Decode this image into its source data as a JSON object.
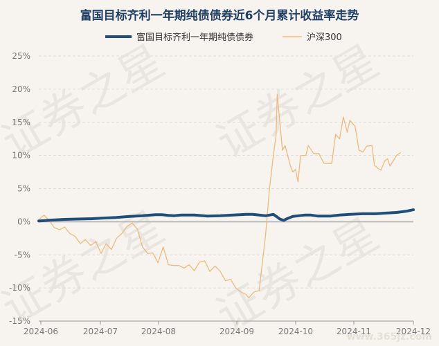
{
  "chart_data": {
    "type": "line",
    "title": "富国目标齐利一年期纯债债券近6个月累计收益率走势",
    "x_ticks": [
      "2024-06",
      "2024-07",
      "2024-08",
      "2024-09",
      "2024-10",
      "2024-11",
      "2024-12"
    ],
    "y_ticks": [
      "25%",
      "20%",
      "15%",
      "10%",
      "5%",
      "0%",
      "-5%",
      "-10%",
      "-15%"
    ],
    "ylim": [
      -15,
      25
    ],
    "x_range_days": [
      0,
      190
    ],
    "legend_position": "top",
    "grid": "horizontal-dashed",
    "series": [
      {
        "name": "富国目标齐利一年期纯债债券",
        "color": "#1f4e7a",
        "points": [
          [
            0,
            0.1
          ],
          [
            10,
            0.25
          ],
          [
            20,
            0.35
          ],
          [
            30,
            0.4
          ],
          [
            40,
            0.45
          ],
          [
            50,
            0.55
          ],
          [
            60,
            0.65
          ],
          [
            70,
            0.8
          ],
          [
            80,
            0.9
          ],
          [
            90,
            1.05
          ],
          [
            95,
            1.05
          ],
          [
            100,
            0.95
          ],
          [
            104,
            0.9
          ],
          [
            110,
            1.0
          ],
          [
            120,
            1.0
          ],
          [
            130,
            0.85
          ],
          [
            140,
            0.9
          ],
          [
            150,
            1.0
          ],
          [
            160,
            1.1
          ],
          [
            165,
            1.1
          ],
          [
            170,
            1.0
          ],
          [
            175,
            0.9
          ],
          [
            181,
            1.1
          ],
          [
            184,
            0.7
          ],
          [
            186,
            0.4
          ],
          [
            189,
            0.2
          ],
          [
            191,
            0.4
          ],
          [
            196,
            0.8
          ],
          [
            205,
            1.0
          ],
          [
            210,
            1.0
          ],
          [
            215,
            0.85
          ],
          [
            225,
            0.85
          ],
          [
            232,
            1.0
          ],
          [
            240,
            1.1
          ],
          [
            250,
            1.2
          ],
          [
            260,
            1.2
          ],
          [
            268,
            1.3
          ],
          [
            276,
            1.4
          ],
          [
            284,
            1.6
          ],
          [
            289,
            1.8
          ]
        ]
      },
      {
        "name": "沪深300",
        "color": "#f0b97a",
        "points": [
          [
            0,
            0.3
          ],
          [
            4,
            1.0
          ],
          [
            8,
            0.2
          ],
          [
            12,
            -0.9
          ],
          [
            16,
            -1.2
          ],
          [
            20,
            -0.8
          ],
          [
            24,
            -1.8
          ],
          [
            28,
            -2.2
          ],
          [
            32,
            -3.3
          ],
          [
            36,
            -2.7
          ],
          [
            40,
            -3.6
          ],
          [
            44,
            -3.0
          ],
          [
            48,
            -4.8
          ],
          [
            52,
            -3.3
          ],
          [
            56,
            -4.2
          ],
          [
            60,
            -2.5
          ],
          [
            64,
            -1.8
          ],
          [
            68,
            -0.7
          ],
          [
            72,
            -0.2
          ],
          [
            76,
            -1.1
          ],
          [
            80,
            -3.8
          ],
          [
            84,
            -4.8
          ],
          [
            88,
            -4.7
          ],
          [
            92,
            -6.2
          ],
          [
            96,
            -3.8
          ],
          [
            100,
            -6.5
          ],
          [
            104,
            -6.6
          ],
          [
            108,
            -6.6
          ],
          [
            112,
            -7.0
          ],
          [
            116,
            -6.5
          ],
          [
            120,
            -7.4
          ],
          [
            124,
            -6.1
          ],
          [
            128,
            -5.9
          ],
          [
            132,
            -7.5
          ],
          [
            136,
            -6.7
          ],
          [
            140,
            -7.5
          ],
          [
            144,
            -8.9
          ],
          [
            148,
            -8.7
          ],
          [
            152,
            -10.0
          ],
          [
            156,
            -10.6
          ],
          [
            160,
            -11.0
          ],
          [
            162,
            -11.5
          ],
          [
            166,
            -10.6
          ],
          [
            170,
            -10.4
          ],
          [
            172,
            -7.0
          ],
          [
            175,
            -2.0
          ],
          [
            178,
            5.0
          ],
          [
            181,
            10.0
          ],
          [
            183,
            13.0
          ],
          [
            184,
            19.2
          ],
          [
            186,
            15.0
          ],
          [
            188,
            10.8
          ],
          [
            190,
            11.5
          ],
          [
            192,
            10.0
          ],
          [
            194,
            8.5
          ],
          [
            196,
            7.5
          ],
          [
            198,
            7.9
          ],
          [
            200,
            6.0
          ],
          [
            202,
            10.0
          ],
          [
            206,
            10.0
          ],
          [
            208,
            11.5
          ],
          [
            212,
            10.3
          ],
          [
            216,
            10.3
          ],
          [
            220,
            8.8
          ],
          [
            226,
            8.8
          ],
          [
            229,
            13.2
          ],
          [
            232,
            12.5
          ],
          [
            235,
            15.8
          ],
          [
            238,
            13.5
          ],
          [
            240,
            15.3
          ],
          [
            244,
            14.4
          ],
          [
            247,
            10.8
          ],
          [
            250,
            10.5
          ],
          [
            253,
            11.4
          ],
          [
            257,
            11.5
          ],
          [
            259,
            8.5
          ],
          [
            262,
            8.0
          ],
          [
            264,
            7.8
          ],
          [
            267,
            9.2
          ],
          [
            269,
            9.5
          ],
          [
            271,
            8.4
          ],
          [
            276,
            10.0
          ],
          [
            279,
            10.4
          ]
        ]
      }
    ]
  },
  "watermark_text": "证券之星",
  "source_text": "www.365jz.com"
}
